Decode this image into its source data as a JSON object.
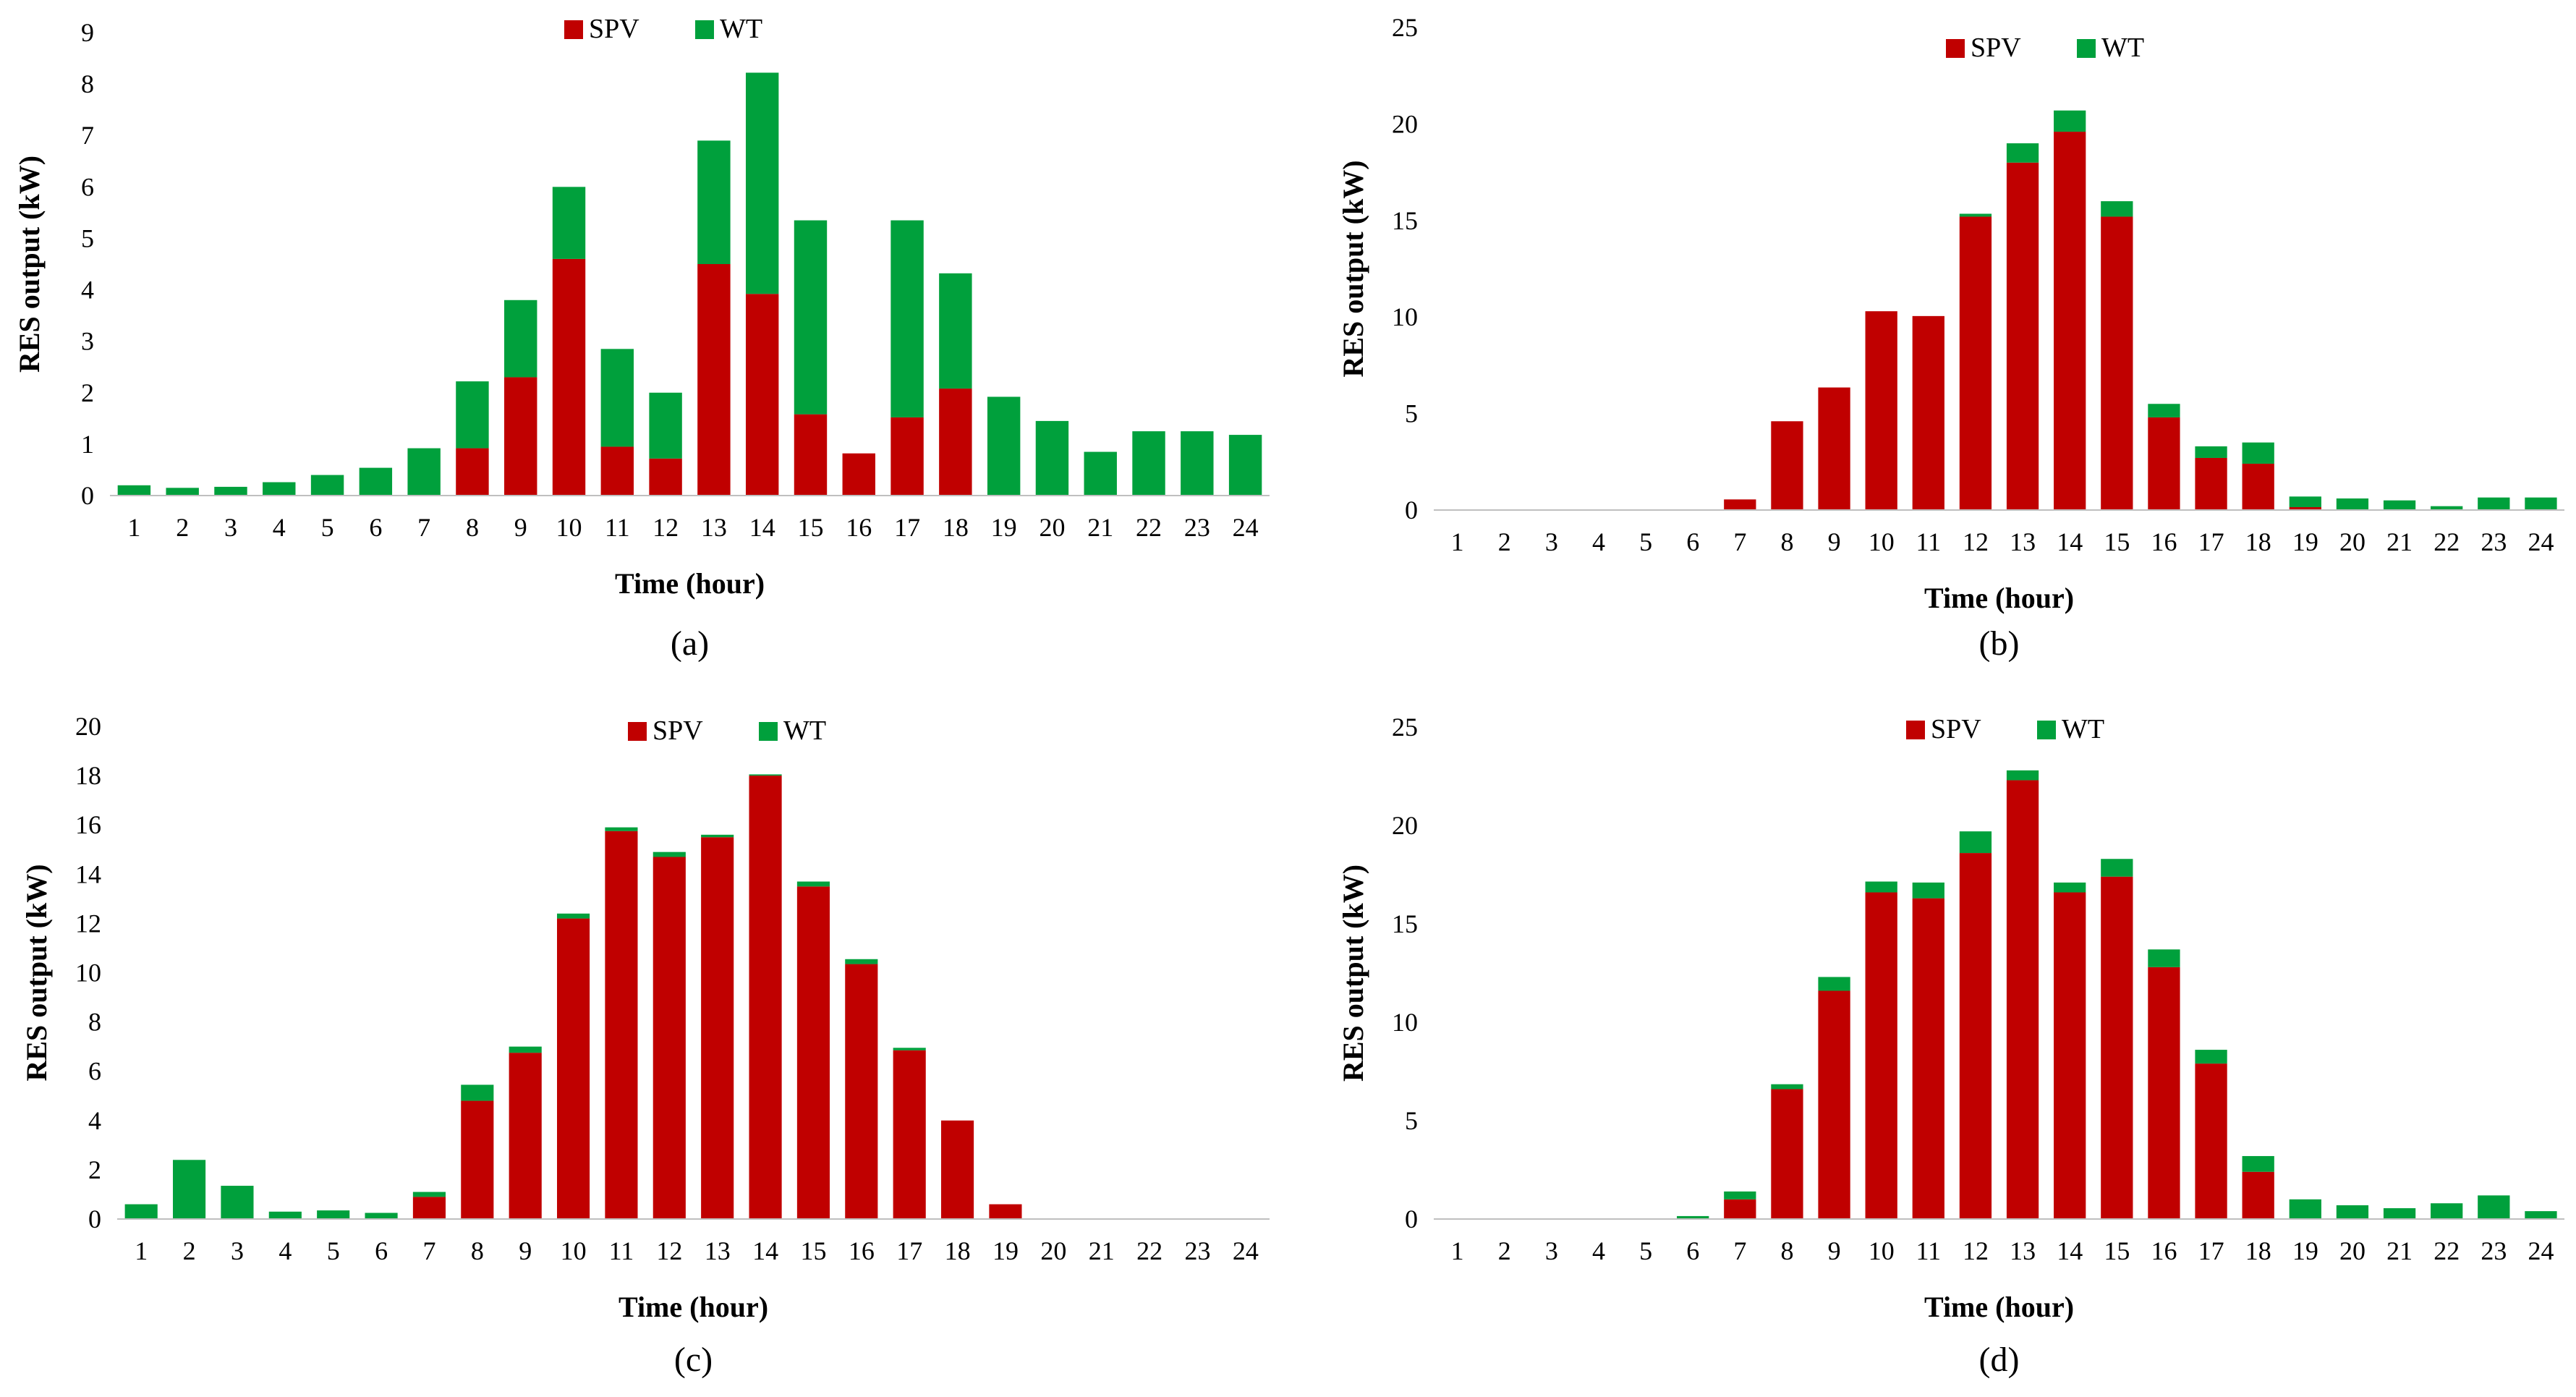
{
  "colors": {
    "spv": "#c00000",
    "wt": "#00a03c"
  },
  "chart_data": [
    {
      "type": "bar",
      "stacked": true,
      "panel_label": "(a)",
      "xlabel": "Time (hour)",
      "ylabel": "RES output (kW)",
      "ylim": [
        0,
        9
      ],
      "yticks": [
        0,
        1,
        2,
        3,
        4,
        5,
        6,
        7,
        8,
        9
      ],
      "legend_position": "top-center",
      "categories": [
        "1",
        "2",
        "3",
        "4",
        "5",
        "6",
        "7",
        "8",
        "9",
        "10",
        "11",
        "12",
        "13",
        "14",
        "15",
        "16",
        "17",
        "18",
        "19",
        "20",
        "21",
        "22",
        "23",
        "24"
      ],
      "series": [
        {
          "name": "SPV",
          "values": [
            0,
            0,
            0,
            0,
            0,
            0,
            0,
            0.92,
            2.3,
            4.6,
            0.95,
            0.72,
            4.5,
            3.92,
            1.58,
            0.82,
            1.52,
            2.08,
            0,
            0,
            0,
            0,
            0,
            0
          ]
        },
        {
          "name": "WT",
          "values": [
            0.2,
            0.15,
            0.17,
            0.26,
            0.4,
            0.54,
            0.92,
            1.3,
            1.5,
            1.4,
            1.9,
            1.28,
            2.4,
            4.3,
            3.77,
            0,
            3.83,
            2.24,
            1.92,
            1.45,
            0.85,
            1.25,
            1.25,
            1.18
          ]
        }
      ]
    },
    {
      "type": "bar",
      "stacked": true,
      "panel_label": "(b)",
      "xlabel": "Time (hour)",
      "ylabel": "RES output (kW)",
      "ylim": [
        0,
        25
      ],
      "yticks": [
        0,
        5,
        10,
        15,
        20,
        25
      ],
      "legend_position": "top-center",
      "categories": [
        "1",
        "2",
        "3",
        "4",
        "5",
        "6",
        "7",
        "8",
        "9",
        "10",
        "11",
        "12",
        "13",
        "14",
        "15",
        "16",
        "17",
        "18",
        "19",
        "20",
        "21",
        "22",
        "23",
        "24"
      ],
      "series": [
        {
          "name": "SPV",
          "values": [
            0,
            0,
            0,
            0,
            0,
            0,
            0.55,
            4.6,
            6.35,
            10.3,
            10.05,
            15.2,
            18.0,
            19.6,
            15.2,
            4.8,
            2.7,
            2.4,
            0.15,
            0,
            0,
            0,
            0,
            0
          ]
        },
        {
          "name": "WT",
          "values": [
            0,
            0,
            0,
            0,
            0,
            0,
            0,
            0,
            0,
            0,
            0,
            0.15,
            1.0,
            1.1,
            0.8,
            0.7,
            0.6,
            1.1,
            0.55,
            0.6,
            0.5,
            0.2,
            0.65,
            0.65
          ]
        }
      ]
    },
    {
      "type": "bar",
      "stacked": true,
      "panel_label": "(c)",
      "xlabel": "Time (hour)",
      "ylabel": "RES output (kW)",
      "ylim": [
        0,
        20
      ],
      "yticks": [
        0,
        2,
        4,
        6,
        8,
        10,
        12,
        14,
        16,
        18,
        20
      ],
      "legend_position": "top-center",
      "categories": [
        "1",
        "2",
        "3",
        "4",
        "5",
        "6",
        "7",
        "8",
        "9",
        "10",
        "11",
        "12",
        "13",
        "14",
        "15",
        "16",
        "17",
        "18",
        "19",
        "20",
        "21",
        "22",
        "23",
        "24"
      ],
      "series": [
        {
          "name": "SPV",
          "values": [
            0,
            0,
            0,
            0,
            0,
            0,
            0.9,
            4.8,
            6.75,
            12.2,
            15.75,
            14.7,
            15.5,
            18.0,
            13.5,
            10.35,
            6.85,
            4.0,
            0.6,
            0,
            0,
            0,
            0,
            0
          ]
        },
        {
          "name": "WT",
          "values": [
            0.6,
            2.4,
            1.35,
            0.3,
            0.35,
            0.25,
            0.2,
            0.65,
            0.25,
            0.2,
            0.15,
            0.2,
            0.1,
            0.05,
            0.2,
            0.2,
            0.1,
            0,
            0,
            0,
            0,
            0,
            0,
            0
          ]
        }
      ]
    },
    {
      "type": "bar",
      "stacked": true,
      "panel_label": "(d)",
      "xlabel": "Time (hour)",
      "ylabel": "RES output (kW)",
      "ylim": [
        0,
        25
      ],
      "yticks": [
        0,
        5,
        10,
        15,
        20,
        25
      ],
      "legend_position": "top-center",
      "categories": [
        "1",
        "2",
        "3",
        "4",
        "5",
        "6",
        "7",
        "8",
        "9",
        "10",
        "11",
        "12",
        "13",
        "14",
        "15",
        "16",
        "17",
        "18",
        "19",
        "20",
        "21",
        "22",
        "23",
        "24"
      ],
      "series": [
        {
          "name": "SPV",
          "values": [
            0,
            0,
            0,
            0,
            0,
            0,
            1.0,
            6.6,
            11.6,
            16.6,
            16.3,
            18.6,
            22.3,
            16.6,
            17.4,
            12.8,
            7.9,
            2.4,
            0,
            0,
            0,
            0,
            0,
            0
          ]
        },
        {
          "name": "WT",
          "values": [
            0,
            0,
            0,
            0,
            0,
            0.15,
            0.4,
            0.25,
            0.7,
            0.55,
            0.8,
            1.1,
            0.5,
            0.5,
            0.9,
            0.9,
            0.7,
            0.8,
            1.0,
            0.7,
            0.55,
            0.8,
            1.2,
            0.4
          ]
        }
      ]
    }
  ]
}
